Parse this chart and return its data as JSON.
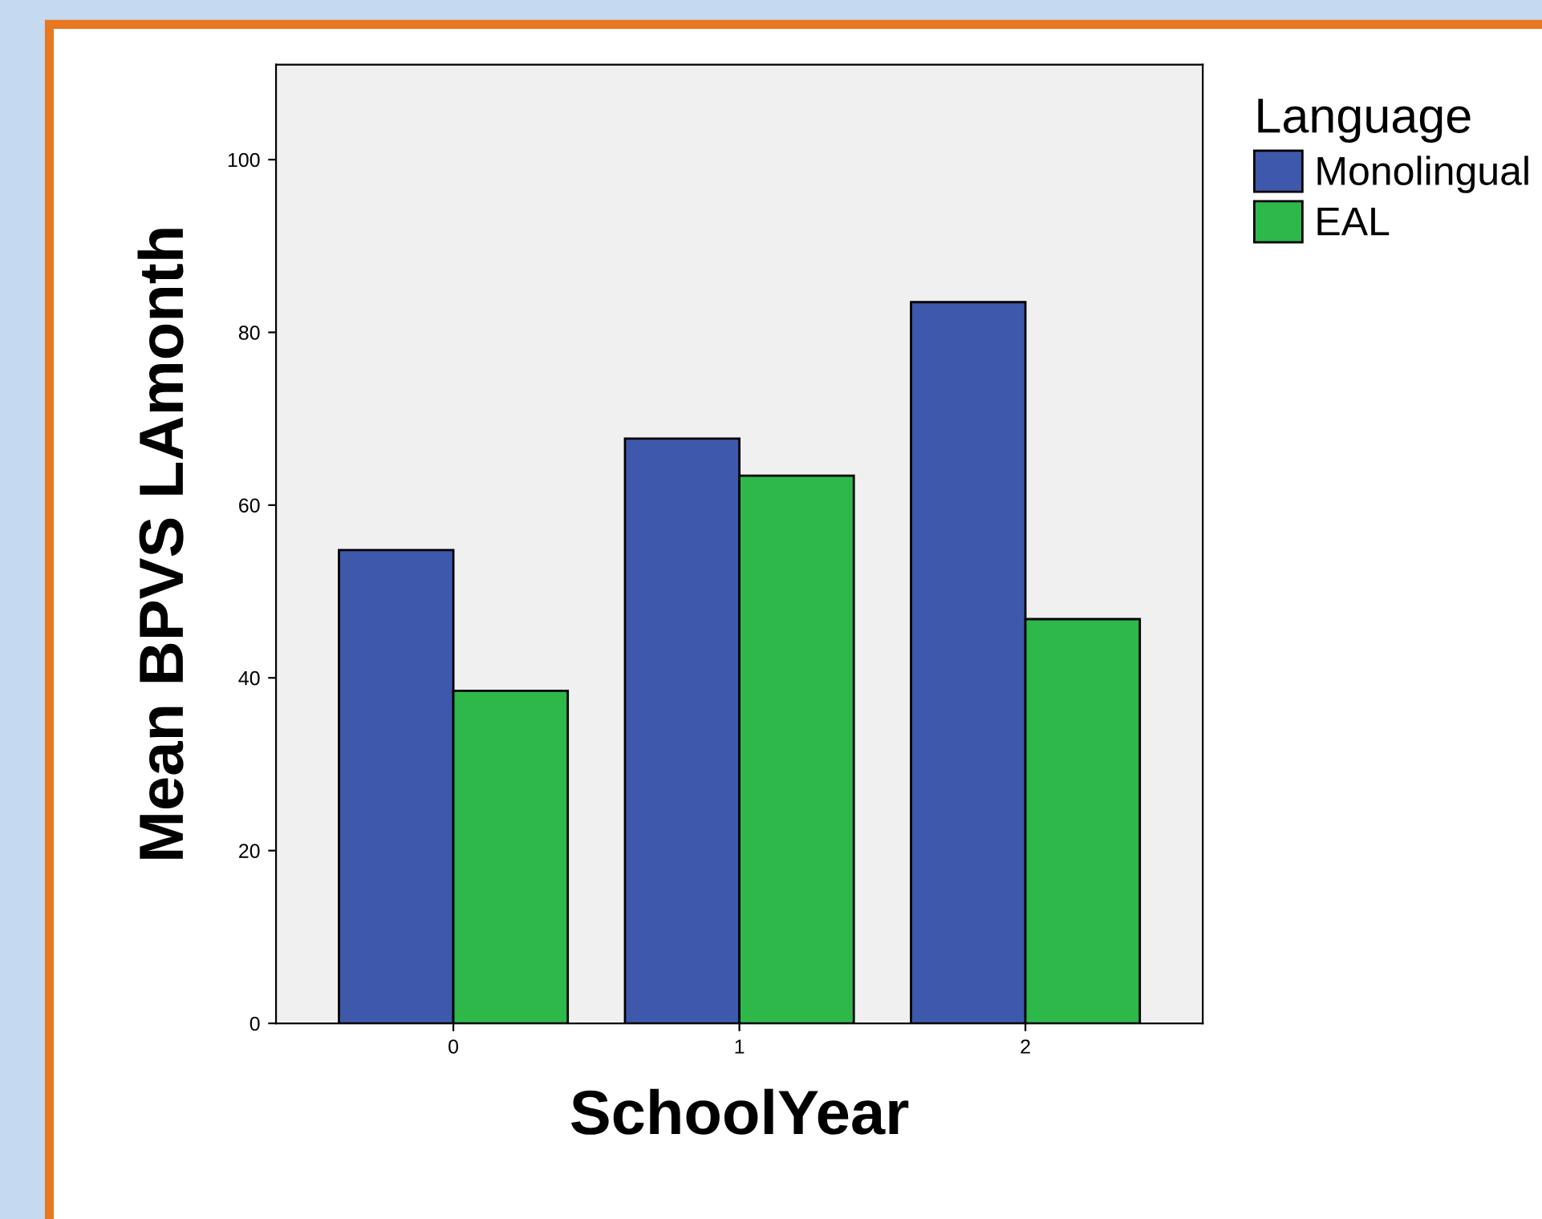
{
  "chart_data": {
    "type": "bar",
    "xlabel": "SchoolYear",
    "ylabel": "Mean BPVS LAmonth",
    "legend_title": "Language",
    "categories": [
      "0",
      "1",
      "2"
    ],
    "series": [
      {
        "name": "Monolingual",
        "color": "#3e58ac",
        "values": [
          54.8,
          67.7,
          83.5
        ]
      },
      {
        "name": "EAL",
        "color": "#2fb84a",
        "values": [
          38.5,
          63.4,
          46.8
        ]
      }
    ],
    "ylim": [
      0,
      111
    ],
    "yticks": [
      0,
      20,
      40,
      60,
      80,
      100
    ],
    "grid": false,
    "legend": "top right"
  }
}
